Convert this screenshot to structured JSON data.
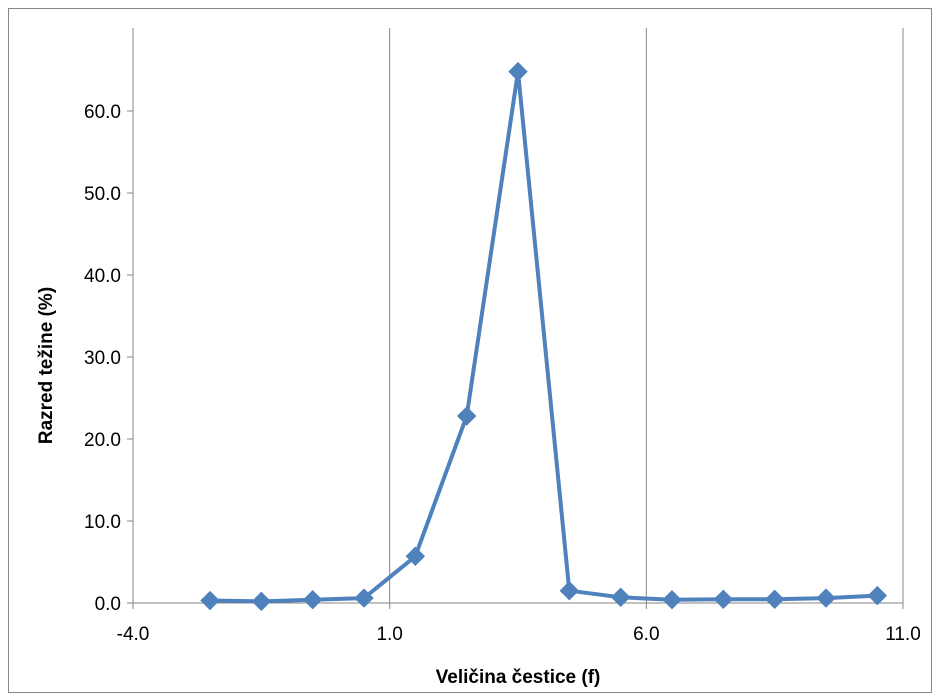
{
  "chart_data": {
    "type": "line",
    "title": "",
    "xlabel": "Veličina čestice (f)",
    "ylabel": "Razred težine  (%)",
    "xlim": [
      -4.0,
      11.0
    ],
    "ylim": [
      0.0,
      65.0
    ],
    "x_ticks": [
      "-4.0",
      "1.0",
      "6.0",
      "11.0"
    ],
    "y_ticks": [
      "0.0",
      "10.0",
      "20.0",
      "30.0",
      "40.0",
      "50.0",
      "60.0"
    ],
    "x_tick_values": [
      -4,
      1,
      6,
      11
    ],
    "y_tick_values": [
      0,
      10,
      20,
      30,
      40,
      50,
      60
    ],
    "grid": true,
    "grid_axis": "x",
    "legend": "none",
    "series": [
      {
        "color": "#4f81bd",
        "marker": "diamond",
        "x": [
          -2.5,
          -1.5,
          -0.5,
          0.5,
          1.5,
          2.5,
          3.5,
          4.5,
          5.5,
          6.5,
          7.5,
          8.5,
          9.5,
          10.5
        ],
        "y": [
          0.3,
          0.2,
          0.4,
          0.6,
          5.7,
          22.8,
          64.8,
          1.5,
          0.7,
          0.4,
          0.45,
          0.45,
          0.6,
          0.9
        ]
      }
    ]
  }
}
